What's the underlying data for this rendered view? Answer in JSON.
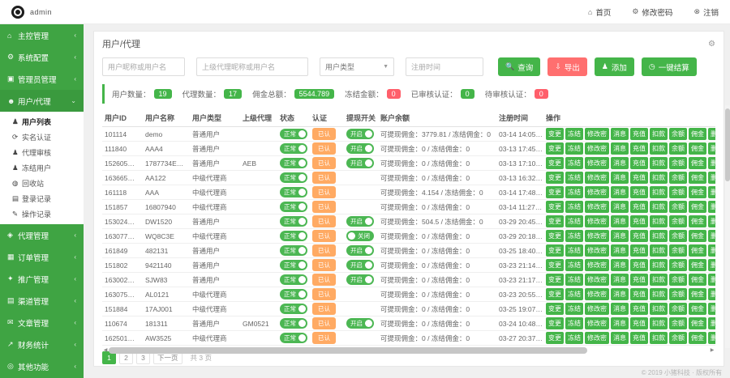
{
  "header": {
    "logo_text": "admin",
    "nav": [
      {
        "icon": "⌂",
        "icon_name": "home-icon",
        "label": "首页"
      },
      {
        "icon": "⚙",
        "icon_name": "settings-icon",
        "label": "修改密码"
      },
      {
        "icon": "⊗",
        "icon_name": "logout-icon",
        "label": "注销"
      }
    ]
  },
  "sidebar": {
    "menus_top": [
      {
        "icon": "⌂",
        "icon_name": "home-icon",
        "label": "主控管理"
      },
      {
        "icon": "⚙",
        "icon_name": "gear-icon",
        "label": "系统配置"
      },
      {
        "icon": "▣",
        "icon_name": "admin-icon",
        "label": "管理员管理"
      }
    ],
    "user_menu": {
      "icon": "☻",
      "icon_name": "users-icon",
      "label": "用户/代理"
    },
    "submenu": [
      {
        "icon": "♟",
        "icon_name": "user-icon",
        "label": "用户列表"
      },
      {
        "icon": "⟳",
        "icon_name": "refresh-icon",
        "label": "实名认证"
      },
      {
        "icon": "♟",
        "icon_name": "user-check-icon",
        "label": "代理审核"
      },
      {
        "icon": "♟",
        "icon_name": "user-lock-icon",
        "label": "冻结用户"
      },
      {
        "icon": "◍",
        "icon_name": "recycle-icon",
        "label": "回收站"
      },
      {
        "icon": "▤",
        "icon_name": "log-icon",
        "label": "登录记录"
      },
      {
        "icon": "✎",
        "icon_name": "edit-log-icon",
        "label": "操作记录"
      }
    ],
    "menus_bottom": [
      {
        "icon": "◈",
        "icon_name": "agent-icon",
        "label": "代理管理"
      },
      {
        "icon": "▦",
        "icon_name": "orders-icon",
        "label": "订单管理"
      },
      {
        "icon": "✦",
        "icon_name": "promo-icon",
        "label": "推广管理"
      },
      {
        "icon": "▤",
        "icon_name": "channel-icon",
        "label": "渠道管理"
      },
      {
        "icon": "✉",
        "icon_name": "article-icon",
        "label": "文章管理"
      },
      {
        "icon": "↗",
        "icon_name": "finance-icon",
        "label": "财务统计"
      },
      {
        "icon": "◎",
        "icon_name": "misc-icon",
        "label": "其他功能"
      }
    ],
    "chevron_collapsed": "‹",
    "chevron_expanded": "⌄"
  },
  "page": {
    "title": "用户/代理"
  },
  "filters": {
    "inputs": [
      {
        "placeholder": "用户昵称或用户名"
      },
      {
        "placeholder": "上级代理昵称或用户名"
      }
    ],
    "select": {
      "value": "用户类型"
    },
    "date": {
      "placeholder": "注册时间"
    }
  },
  "buttons": {
    "search": {
      "icon": "🔍",
      "label": "查询"
    },
    "export": {
      "icon": "⇩",
      "label": "导出"
    },
    "add": {
      "icon": "♟",
      "label": "添加"
    },
    "batch": {
      "icon": "◷",
      "label": "一键结算"
    }
  },
  "stats": [
    {
      "label": "用户数量：",
      "value": "19",
      "color": "green"
    },
    {
      "label": "代理数量：",
      "value": "17",
      "color": "green"
    },
    {
      "label": "佣金总额：",
      "value": "5544.789",
      "color": "green"
    },
    {
      "label": "冻结金额：",
      "value": "0",
      "color": "red"
    },
    {
      "label": "已审核认证：",
      "value": "0",
      "color": "green"
    },
    {
      "label": "待审核认证：",
      "value": "0",
      "color": "red"
    }
  ],
  "table": {
    "headers": [
      "用户ID",
      "用户名称",
      "用户类型",
      "上级代理",
      "状态",
      "认证",
      "提现开关",
      "账户余额",
      "注册时间",
      "操作"
    ],
    "action_labels": [
      "变更",
      "冻结",
      "修改密",
      "消息",
      "充值",
      "扣款",
      "余额",
      "佣金",
      "删除"
    ],
    "status_on": "正常",
    "cert_label": "已认",
    "wake_on": "开启",
    "wake_off": "关闭",
    "rows": [
      {
        "id": "101114",
        "name": "demo",
        "type": "普通用户",
        "agent": "",
        "wake": "开启",
        "balance": "可提现佣金：3779.81 / 冻结佣金：0",
        "time": "03-14 14:05…"
      },
      {
        "id": "111840",
        "name": "AAA4",
        "type": "普通用户",
        "agent": "",
        "wake": "开启",
        "balance": "可提现佣金：0 / 冻结佣金：0",
        "time": "03-13 17:45…"
      },
      {
        "id": "152605…",
        "name": "1787734E…",
        "type": "普通用户",
        "agent": "AEB",
        "wake": "开启",
        "balance": "可提现佣金：0 / 冻结佣金：0",
        "time": "03-13 17:10…"
      },
      {
        "id": "163665…",
        "name": "AA122",
        "type": "中级代理商",
        "agent": "",
        "wake": "",
        "balance": "可提现佣金：0 / 冻结佣金：0",
        "time": "03-13 16:32…"
      },
      {
        "id": "161118",
        "name": "AAA",
        "type": "中级代理商",
        "agent": "",
        "wake": "",
        "balance": "可提现佣金：4.154 / 冻结佣金：0",
        "time": "03-14 17:48…"
      },
      {
        "id": "151857",
        "name": "16807940",
        "type": "中级代理商",
        "agent": "",
        "wake": "",
        "balance": "可提现佣金：0 / 冻结佣金：0",
        "time": "03-14 11:27…"
      },
      {
        "id": "153024…",
        "name": "DW1520",
        "type": "普通用户",
        "agent": "",
        "wake": "开启",
        "balance": "可提现佣金：504.5 / 冻结佣金：0",
        "time": "03-29 20:45…"
      },
      {
        "id": "163077…",
        "name": "WQ8C3E",
        "type": "中级代理商",
        "agent": "",
        "wake": "关闭",
        "balance": "可提现佣金：0 / 冻结佣金：0",
        "time": "03-29 20:18…"
      },
      {
        "id": "161849",
        "name": "482131",
        "type": "普通用户",
        "agent": "",
        "wake": "开启",
        "balance": "可提现佣金：0 / 冻结佣金：0",
        "time": "03-25 18:40…"
      },
      {
        "id": "151802",
        "name": "9421140",
        "type": "普通用户",
        "agent": "",
        "wake": "开启",
        "balance": "可提现佣金：0 / 冻结佣金：0",
        "time": "03-23 21:14…"
      },
      {
        "id": "163002…",
        "name": "SJW83",
        "type": "普通用户",
        "agent": "",
        "wake": "开启",
        "balance": "可提现佣金：0 / 冻结佣金：0",
        "time": "03-23 21:17…"
      },
      {
        "id": "163075…",
        "name": "AL0121",
        "type": "中级代理商",
        "agent": "",
        "wake": "",
        "balance": "可提现佣金：0 / 冻结佣金：0",
        "time": "03-23 20:55…"
      },
      {
        "id": "151884",
        "name": "17AJ001",
        "type": "中级代理商",
        "agent": "",
        "wake": "",
        "balance": "可提现佣金：0 / 冻结佣金：0",
        "time": "03-25 19:07…"
      },
      {
        "id": "110674",
        "name": "181311",
        "type": "普通用户",
        "agent": "GM0521",
        "wake": "开启",
        "balance": "可提现佣金：0 / 冻结佣金：0",
        "time": "03-24 10:48…"
      },
      {
        "id": "162501…",
        "name": "AW3525",
        "type": "中级代理商",
        "agent": "",
        "wake": "",
        "balance": "可提现佣金：0 / 冻结佣金：0",
        "time": "03-27 20:37…"
      }
    ]
  },
  "pagination": {
    "pages": [
      "1",
      "2",
      "3"
    ],
    "active": "1",
    "next": "下一页",
    "total": "共 3 页"
  },
  "footer": {
    "copyright": "© 2019 小猪科技 · 版权所有"
  },
  "colors": {
    "primary": "#44b549",
    "sidebar": "#3fa443",
    "danger": "#ff6f6f",
    "warning": "#ffaa63",
    "badge_red": "#ff5f6b"
  }
}
